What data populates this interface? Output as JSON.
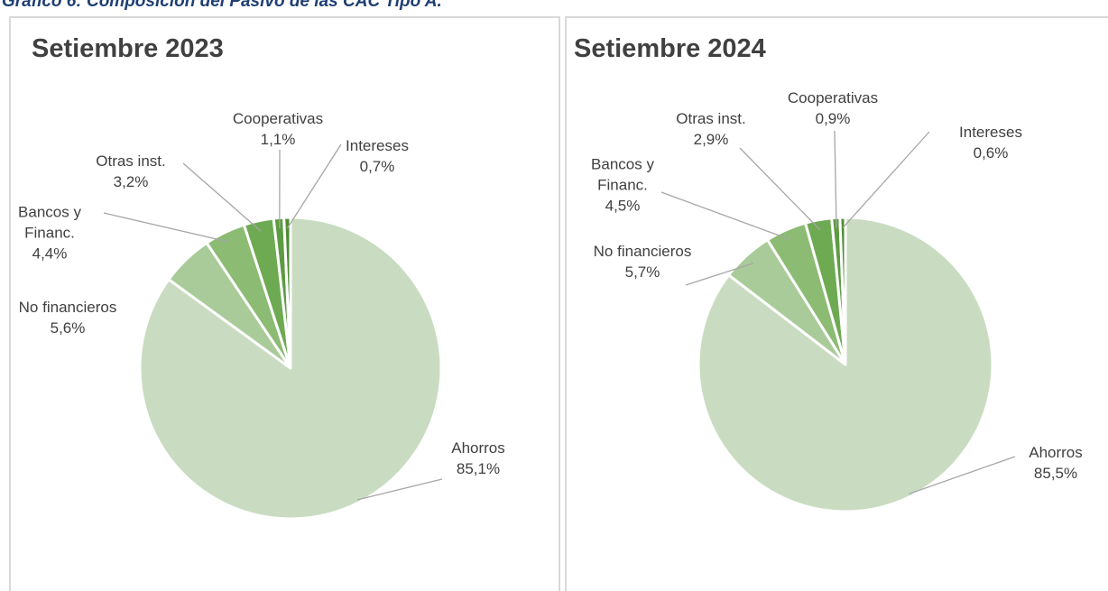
{
  "header": {
    "title": "Gráfico 6: Composición del Pasivo de las CAC Tipo A."
  },
  "chart_data": [
    {
      "type": "pie",
      "title": "Setiembre 2023",
      "categories": [
        "Ahorros",
        "No financieros",
        "Bancos y Financ.",
        "Otras inst.",
        "Cooperativas",
        "Intereses"
      ],
      "values": [
        85.1,
        5.6,
        4.4,
        3.2,
        1.1,
        0.7
      ],
      "value_labels": [
        "85,1%",
        "5,6%",
        "4,4%",
        "3,2%",
        "1,1%",
        "0,7%"
      ],
      "colors": [
        "#c9dcc1",
        "#a9cb99",
        "#8cbb74",
        "#6daa52",
        "#5d9b42",
        "#4f8d35"
      ]
    },
    {
      "type": "pie",
      "title": "Setiembre 2024",
      "categories": [
        "Ahorros",
        "No financieros",
        "Bancos y Financ.",
        "Otras inst.",
        "Cooperativas",
        "Intereses"
      ],
      "values": [
        85.5,
        5.7,
        4.5,
        2.9,
        0.9,
        0.6
      ],
      "value_labels": [
        "85,5%",
        "5,7%",
        "4,5%",
        "2,9%",
        "0,9%",
        "0,6%"
      ],
      "colors": [
        "#c9dcc1",
        "#a9cb99",
        "#8cbb74",
        "#6daa52",
        "#5d9b42",
        "#4f8d35"
      ]
    }
  ]
}
